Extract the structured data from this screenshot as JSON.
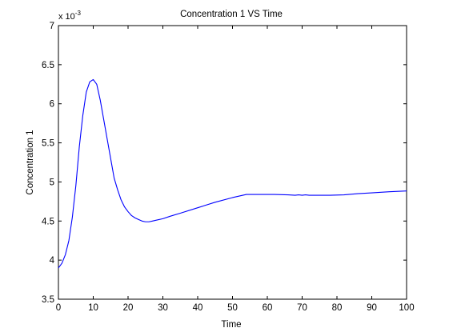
{
  "chart_data": {
    "type": "line",
    "title": "Concentration 1 VS Time",
    "xlabel": "Time",
    "ylabel": "Concentration 1",
    "y_multiplier_label": "x 10",
    "y_multiplier_exponent": "-3",
    "xlim": [
      0,
      100
    ],
    "ylim": [
      3.5,
      7
    ],
    "xticks": [
      0,
      10,
      20,
      30,
      40,
      50,
      60,
      70,
      80,
      90,
      100
    ],
    "yticks": [
      3.5,
      4,
      4.5,
      5,
      5.5,
      6,
      6.5,
      7
    ],
    "ytick_labels": [
      "3.5",
      "4",
      "4.5",
      "5",
      "5.5",
      "6",
      "6.5",
      "7"
    ],
    "grid": false,
    "legend": "none",
    "series": [
      {
        "color": "#0000ff",
        "x": [
          0,
          1,
          2,
          3,
          4,
          5,
          6,
          7,
          8,
          9,
          10,
          11,
          12,
          13,
          14,
          15,
          16,
          17,
          18,
          19,
          20,
          21,
          22,
          23,
          24,
          25,
          26,
          27,
          28,
          30,
          32,
          35,
          40,
          45,
          50,
          54,
          58,
          62,
          66,
          68,
          69,
          70,
          71,
          72,
          74,
          78,
          82,
          86,
          90,
          95,
          100
        ],
        "y": [
          3.9,
          3.96,
          4.07,
          4.25,
          4.55,
          4.95,
          5.45,
          5.85,
          6.15,
          6.28,
          6.31,
          6.25,
          6.05,
          5.8,
          5.55,
          5.3,
          5.05,
          4.9,
          4.77,
          4.68,
          4.62,
          4.57,
          4.54,
          4.52,
          4.5,
          4.49,
          4.49,
          4.5,
          4.51,
          4.53,
          4.56,
          4.6,
          4.67,
          4.74,
          4.8,
          4.84,
          4.84,
          4.84,
          4.835,
          4.83,
          4.835,
          4.83,
          4.835,
          4.83,
          4.83,
          4.83,
          4.835,
          4.85,
          4.86,
          4.875,
          4.885
        ]
      }
    ]
  }
}
